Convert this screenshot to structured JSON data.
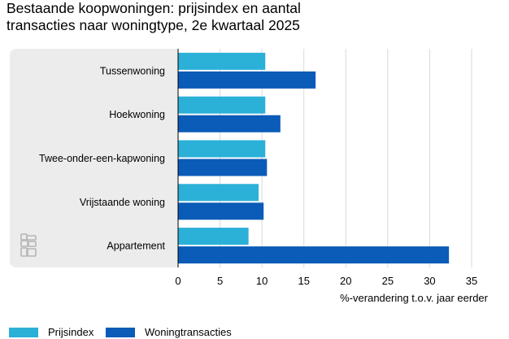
{
  "title": {
    "line1": "Bestaande koopwoningen: prijsindex en aantal",
    "line2": "transacties naar woningtype, 2e kwartaal 2025"
  },
  "colors": {
    "series1": "#2bb0d8",
    "series2": "#0b5bb8",
    "panel": "#ececec",
    "grid": "#d9d9d9",
    "logo": "#b5b5b5"
  },
  "logo": {
    "name": "cbs-logo-icon"
  },
  "chart_data": {
    "type": "bar",
    "orientation": "horizontal",
    "categories": [
      "Tussenwoning",
      "Hoekwoning",
      "Twee-onder-een-kapwoning",
      "Vrijstaande woning",
      "Appartement"
    ],
    "series": [
      {
        "name": "Prijsindex",
        "values": [
          10.4,
          10.4,
          10.4,
          9.6,
          8.4
        ]
      },
      {
        "name": "Woningtransacties",
        "values": [
          16.4,
          12.2,
          10.6,
          10.2,
          32.3
        ]
      }
    ],
    "xlabel": "%-verandering t.o.v. jaar eerder",
    "ylabel": "",
    "xlim": [
      0,
      35
    ],
    "xticks": [
      "0",
      "5",
      "10",
      "15",
      "20",
      "25",
      "30",
      "35"
    ],
    "grid": true,
    "legend": "bottom-left"
  }
}
